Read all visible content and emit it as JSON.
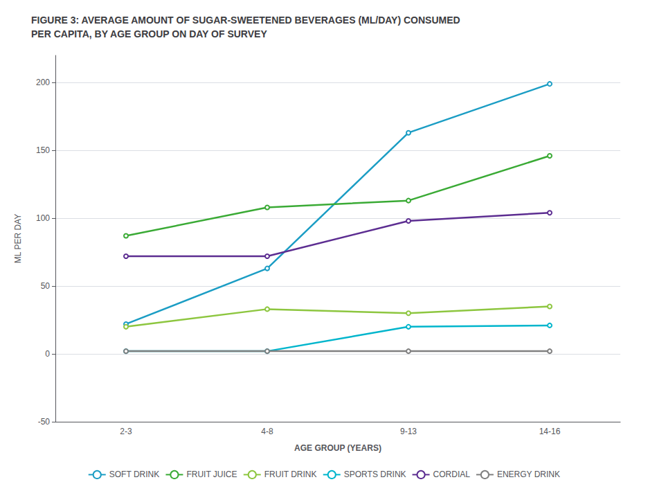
{
  "chart_data": {
    "type": "line",
    "title": "FIGURE 3: AVERAGE AMOUNT OF SUGAR-SWEETENED BEVERAGES (ML/DAY) CONSUMED\nPER CAPITA, BY AGE GROUP ON DAY OF SURVEY",
    "categories": [
      "2-3",
      "4-8",
      "9-13",
      "14-16"
    ],
    "series": [
      {
        "name": "SOFT DRINK",
        "color": "#1B9DC4",
        "values": [
          22,
          63,
          163,
          199
        ]
      },
      {
        "name": "FRUIT JUICE",
        "color": "#3AAA35",
        "values": [
          87,
          108,
          113,
          146
        ]
      },
      {
        "name": "FRUIT DRINK",
        "color": "#8DC63F",
        "values": [
          20,
          33,
          30,
          35
        ]
      },
      {
        "name": "SPORTS DRINK",
        "color": "#00B5CC",
        "values": [
          2,
          2,
          20,
          21
        ]
      },
      {
        "name": "CORDIAL",
        "color": "#5C2D91",
        "values": [
          72,
          72,
          98,
          104
        ]
      },
      {
        "name": "ENERGY DRINK",
        "color": "#808080",
        "values": [
          2,
          2,
          2,
          2
        ]
      }
    ],
    "xlabel": "AGE GROUP (YEARS)",
    "ylabel": "ML PER DAY",
    "ylim": [
      -50,
      220
    ],
    "yticks": [
      -50,
      0,
      50,
      100,
      150,
      200
    ],
    "grid": true,
    "legend": "bottom"
  }
}
